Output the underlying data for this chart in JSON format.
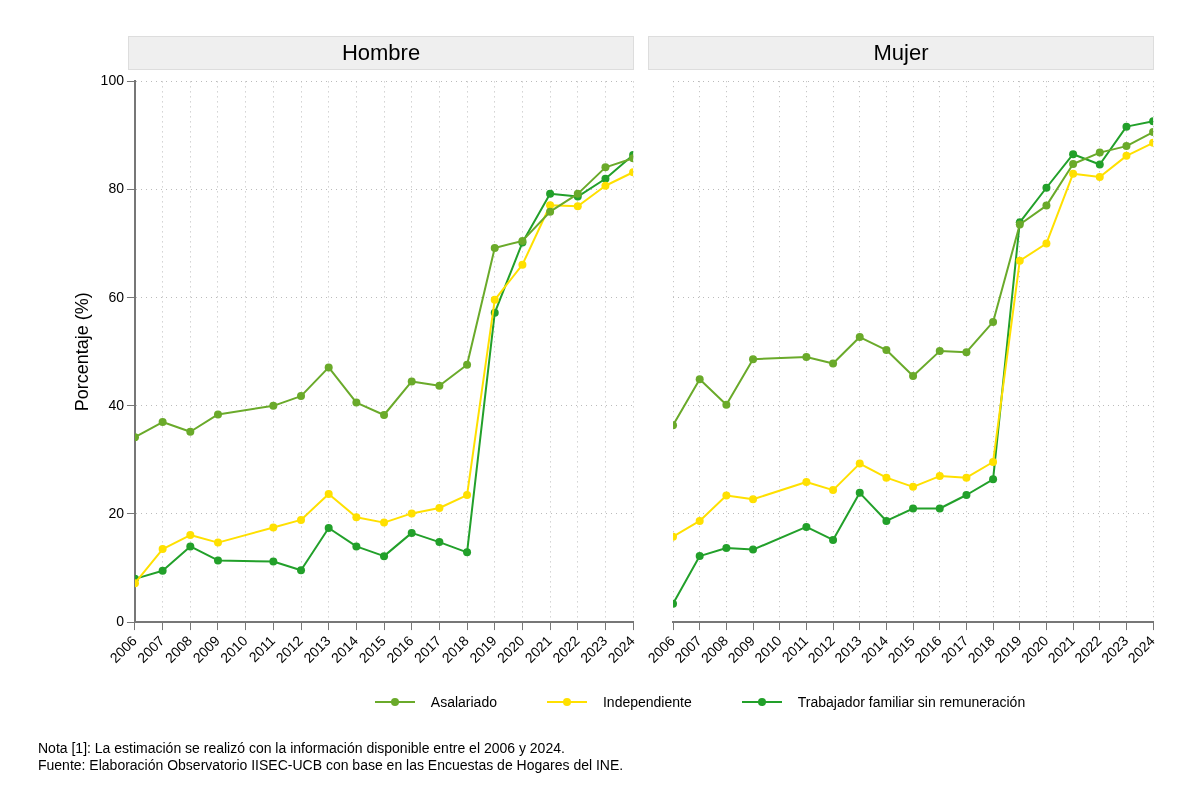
{
  "chart_data": [
    {
      "type": "line",
      "title": "Hombre",
      "ylabel": "Porcentaje (%)",
      "x": [
        2006,
        2007,
        2008,
        2009,
        2011,
        2012,
        2013,
        2014,
        2015,
        2016,
        2017,
        2018,
        2019,
        2020,
        2021,
        2022,
        2023,
        2024
      ],
      "xlim": [
        2006,
        2024
      ],
      "xticks": [
        2006,
        2007,
        2008,
        2009,
        2010,
        2011,
        2012,
        2013,
        2014,
        2015,
        2016,
        2017,
        2018,
        2019,
        2020,
        2021,
        2022,
        2023,
        2024
      ],
      "ylim": [
        0,
        100
      ],
      "yticks": [
        0,
        20,
        40,
        60,
        80,
        100
      ],
      "grid": true,
      "marker": "circle",
      "line_style": "solid",
      "legend": "bottom",
      "series": [
        {
          "name": "Asalariado",
          "color": "#6aaa2a",
          "values": [
            34.2,
            37,
            35.2,
            38.4,
            40,
            41.8,
            47.1,
            40.6,
            38.3,
            44.5,
            43.7,
            47.6,
            69.2,
            70.5,
            75.9,
            79.2,
            84.1,
            85.8
          ]
        },
        {
          "name": "Independiente",
          "color": "#ffe000",
          "values": [
            7.2,
            13.5,
            16.1,
            14.7,
            17.5,
            18.9,
            23.7,
            19.4,
            18.4,
            20.1,
            21.1,
            23.5,
            59.6,
            66.1,
            77.1,
            76.9,
            80.7,
            83.2
          ]
        },
        {
          "name": "Trabajador familiar sin remuneración",
          "color": "#22a02a",
          "values": [
            8,
            9.5,
            14,
            11.4,
            11.2,
            9.6,
            17.4,
            14,
            12.2,
            16.5,
            14.8,
            12.9,
            57.2,
            70.2,
            79.2,
            78.7,
            82,
            86.4
          ]
        }
      ],
      "annotations": [
        "Nota [1]: La estimación se realizó con la información disponible entre el 2006 y 2024.",
        "Fuente: Elaboración Observatorio IISEC-UCB con base en las Encuestas de Hogares del INE."
      ]
    },
    {
      "type": "line",
      "title": "Mujer",
      "x": [
        2006,
        2007,
        2008,
        2009,
        2011,
        2012,
        2013,
        2014,
        2015,
        2016,
        2017,
        2018,
        2019,
        2020,
        2021,
        2022,
        2023,
        2024
      ],
      "xlim": [
        2006,
        2024
      ],
      "xticks": [
        2006,
        2007,
        2008,
        2009,
        2010,
        2011,
        2012,
        2013,
        2014,
        2015,
        2016,
        2017,
        2018,
        2019,
        2020,
        2021,
        2022,
        2023,
        2024
      ],
      "ylim": [
        0,
        100
      ],
      "yticks": [
        0,
        20,
        40,
        60,
        80,
        100
      ],
      "grid": true,
      "marker": "circle",
      "line_style": "solid",
      "tick_labels": "x",
      "series": [
        {
          "color": "#6aaa2a",
          "values": [
            36.4,
            44.9,
            40.2,
            48.6,
            49,
            47.8,
            52.7,
            50.3,
            45.5,
            50.1,
            49.9,
            55.5,
            73.5,
            77,
            84.7,
            86.8,
            88,
            90.6
          ]
        },
        {
          "color": "#ffe000",
          "values": [
            15.8,
            18.7,
            23.4,
            22.7,
            25.9,
            24.4,
            29.3,
            26.7,
            25,
            27,
            26.7,
            29.6,
            66.8,
            70,
            82.9,
            82.3,
            86.2,
            88.6
          ]
        },
        {
          "color": "#22a02a",
          "values": [
            3.4,
            12.2,
            13.7,
            13.4,
            17.6,
            15.2,
            23.9,
            18.7,
            21,
            21,
            23.5,
            26.4,
            73.9,
            80.3,
            86.5,
            84.6,
            91.6,
            92.6
          ]
        }
      ]
    }
  ]
}
